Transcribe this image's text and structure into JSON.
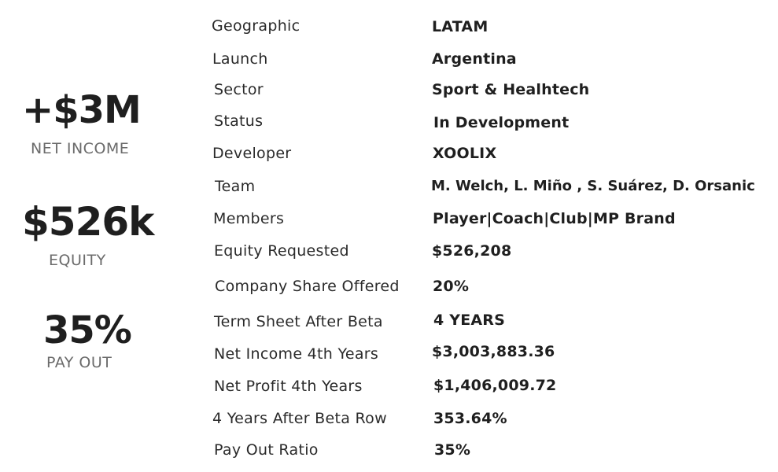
{
  "stats": [
    {
      "value": "+$3M",
      "label": "NET INCOME"
    },
    {
      "value": "$526k",
      "label": "EQUITY"
    },
    {
      "value": "35%",
      "label": "PAY OUT"
    }
  ],
  "fields": [
    {
      "label": "Geographic",
      "value": "LATAM"
    },
    {
      "label": "Launch",
      "value": "Argentina"
    },
    {
      "label": "Sector",
      "value": "Sport & Healhtech"
    },
    {
      "label": "Status",
      "value": "In Development"
    },
    {
      "label": "Developer",
      "value": "XOOLIX"
    },
    {
      "label": "Team",
      "value": "M. Welch, L. Miño , S. Suárez, D. Orsanic"
    },
    {
      "label": "Members",
      "value": "Player|Coach|Club|MP Brand"
    },
    {
      "label": "Equity Requested",
      "value": "$526,208"
    },
    {
      "label": "Company Share Offered",
      "value": "20%"
    },
    {
      "label": "Term Sheet After Beta",
      "value": "4 YEARS"
    },
    {
      "label": "Net Income 4th Years",
      "value": "$3,003,883.36"
    },
    {
      "label": "Net Profit 4th Years",
      "value": "$1,406,009.72"
    },
    {
      "label": "4 Years After Beta Row",
      "value": "353.64%"
    },
    {
      "label": "Pay Out Ratio",
      "value": "35%"
    }
  ]
}
